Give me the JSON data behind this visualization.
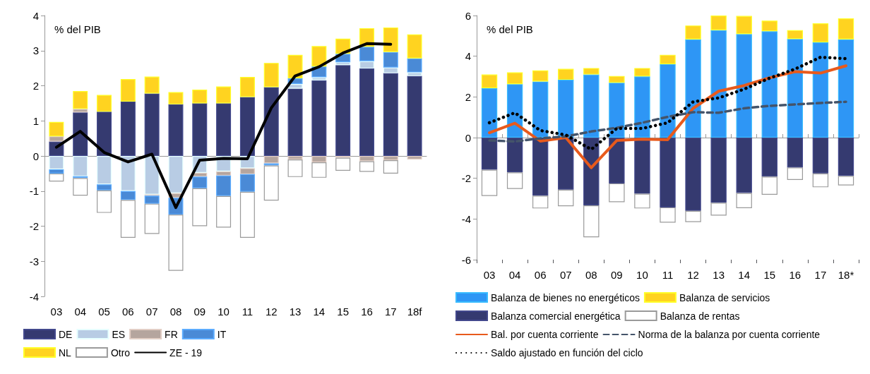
{
  "chart_data": [
    {
      "type": "bar",
      "ylabel": "% del PIB",
      "stacked": true,
      "legend": "bottom",
      "marker": "none",
      "ylim": [
        -4,
        4
      ],
      "yticks": [
        -4,
        -3,
        -2,
        -1,
        0,
        1,
        2,
        3,
        4
      ],
      "categories": [
        "03",
        "04",
        "05",
        "06",
        "07",
        "08",
        "09",
        "10",
        "11",
        "12",
        "13",
        "14",
        "15",
        "16",
        "17",
        "18f"
      ],
      "series": [
        {
          "name": "DE",
          "color": "#353a70",
          "values": [
            0.41,
            1.24,
            1.26,
            1.55,
            1.78,
            1.47,
            1.5,
            1.5,
            1.68,
            1.96,
            1.92,
            2.15,
            2.59,
            2.49,
            2.36,
            2.28
          ]
        },
        {
          "name": "ES",
          "color": "#b8cce4",
          "values": [
            -0.38,
            -0.58,
            -0.81,
            -1.0,
            -1.1,
            -1.06,
            -0.48,
            -0.44,
            -0.35,
            0,
            0.13,
            0.09,
            0.08,
            0.21,
            0.16,
            0.1
          ]
        },
        {
          "name": "FR",
          "color": "#b5a59e",
          "values": [
            0.15,
            0.1,
            0,
            0,
            -0.03,
            -0.13,
            -0.11,
            -0.12,
            -0.17,
            -0.21,
            -0.1,
            -0.18,
            -0.05,
            -0.15,
            -0.12,
            -0.1
          ]
        },
        {
          "name": "IT",
          "color": "#4a8ad6",
          "values": [
            -0.12,
            -0.05,
            -0.17,
            -0.25,
            -0.23,
            -0.48,
            -0.33,
            -0.58,
            -0.5,
            -0.06,
            0.16,
            0.31,
            0.24,
            0.41,
            0.44,
            0.4
          ]
        },
        {
          "name": "NL",
          "color": "#ffd320",
          "values": [
            0.41,
            0.51,
            0.48,
            0.64,
            0.48,
            0.35,
            0.39,
            0.48,
            0.57,
            0.69,
            0.67,
            0.58,
            0.43,
            0.53,
            0.7,
            0.68
          ]
        },
        {
          "name": "Otro",
          "color": "#ffffff",
          "values": [
            -0.23,
            -0.5,
            -0.64,
            -1.08,
            -0.86,
            -1.6,
            -1.08,
            -0.9,
            -1.31,
            -1.0,
            -0.5,
            -0.44,
            -0.37,
            -0.3,
            -0.38,
            0
          ]
        },
        {
          "name": "ZE - 19",
          "type": "line",
          "line_style": "solid",
          "color": "#000000",
          "values": [
            0.25,
            0.7,
            0.1,
            -0.17,
            0.05,
            -1.47,
            -0.12,
            -0.07,
            -0.08,
            1.37,
            2.28,
            2.54,
            2.93,
            3.2,
            3.18,
            null
          ]
        }
      ]
    },
    {
      "type": "bar",
      "ylabel": "% del PIB",
      "stacked": true,
      "legend": "bottom",
      "marker": "none",
      "ylim": [
        -6,
        6
      ],
      "yticks": [
        -6,
        -4,
        -2,
        0,
        2,
        4,
        6
      ],
      "categories": [
        "03",
        "04",
        "06",
        "07",
        "08",
        "09",
        "10",
        "11",
        "12",
        "13",
        "14",
        "15",
        "16",
        "17",
        "18*"
      ],
      "series": [
        {
          "name": "Balanza de bienes no energéticos",
          "color": "#2e96f5",
          "values": [
            2.43,
            2.63,
            2.76,
            2.84,
            3.1,
            2.7,
            3.01,
            3.61,
            4.83,
            5.28,
            5.09,
            5.23,
            4.85,
            4.68,
            4.83
          ]
        },
        {
          "name": "Balanza de servicios",
          "color": "#ffd320",
          "values": [
            0.67,
            0.58,
            0.54,
            0.54,
            0.32,
            0.33,
            0.41,
            0.46,
            0.68,
            0.72,
            0.89,
            0.52,
            0.43,
            0.94,
            1.03
          ]
        },
        {
          "name": "Balanza comercial energética",
          "color": "#353a70",
          "values": [
            -1.58,
            -1.71,
            -2.85,
            -2.56,
            -3.33,
            -2.25,
            -2.76,
            -3.43,
            -3.6,
            -3.2,
            -2.72,
            -1.92,
            -1.47,
            -1.76,
            -1.88
          ]
        },
        {
          "name": "Balanza de rentas",
          "color": "#ffffff",
          "values": [
            -1.29,
            -0.81,
            -0.63,
            -0.81,
            -1.57,
            -0.92,
            -0.72,
            -0.75,
            -0.55,
            -0.63,
            -0.75,
            -0.89,
            -0.61,
            -0.68,
            -0.47
          ]
        },
        {
          "name": "Bal. por cuenta corriente",
          "type": "line",
          "line_style": "solid",
          "color": "#e85a1c",
          "values": [
            0.24,
            0.71,
            -0.17,
            0,
            -1.48,
            -0.14,
            -0.08,
            -0.1,
            1.44,
            2.28,
            2.56,
            2.94,
            3.24,
            3.17,
            3.53
          ]
        },
        {
          "name": "Norma de la balanza por cuenta corriente",
          "type": "line",
          "line_style": "dashed",
          "color": "#44546a",
          "values": [
            -0.14,
            -0.19,
            -0.04,
            0.06,
            0.3,
            0.48,
            0.73,
            1.02,
            1.25,
            1.22,
            1.44,
            1.56,
            1.63,
            1.7,
            1.76
          ]
        },
        {
          "name": "Saldo ajustado en función del ciclo",
          "type": "line",
          "line_style": "dotted",
          "color": "#000000",
          "values": [
            0.73,
            1.22,
            0.35,
            0.13,
            -0.58,
            0.45,
            0.45,
            0.73,
            1.76,
            1.95,
            2.38,
            2.92,
            3.37,
            3.95,
            3.88
          ]
        }
      ]
    }
  ]
}
